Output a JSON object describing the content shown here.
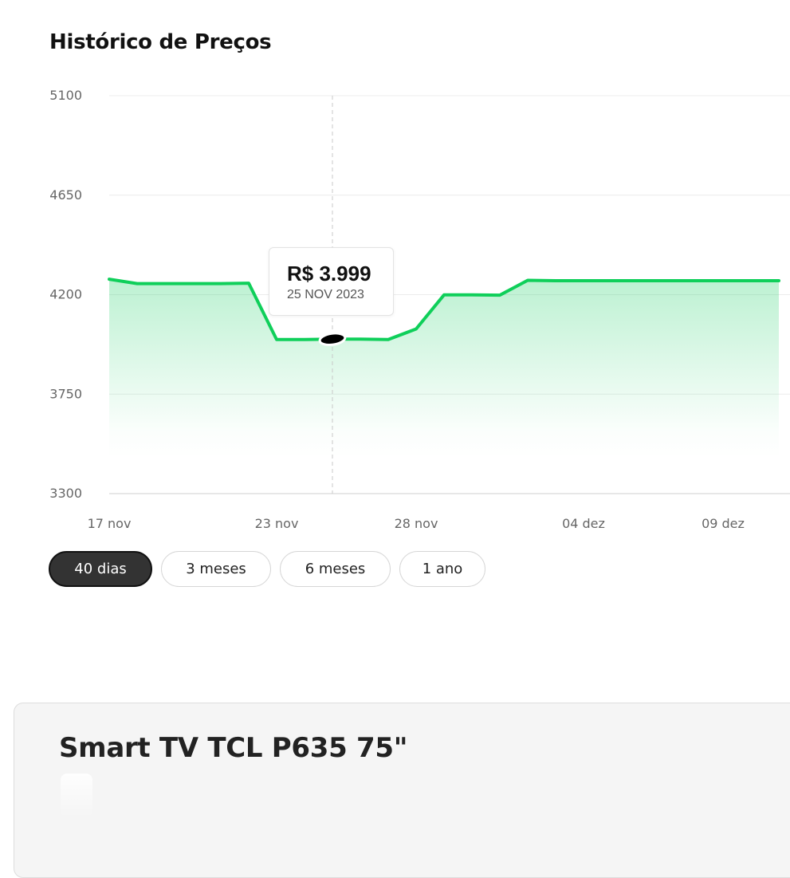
{
  "section": {
    "title": "Histórico de Preços"
  },
  "tooltip": {
    "price": "R$ 3.999",
    "date": "25 NOV 2023"
  },
  "range_buttons": [
    {
      "label": "40 dias",
      "active": true
    },
    {
      "label": "3 meses",
      "active": false
    },
    {
      "label": "6 meses",
      "active": false
    },
    {
      "label": "1 ano",
      "active": false
    }
  ],
  "product": {
    "title": "Smart TV TCL P635 75\""
  },
  "colors": {
    "line": "#0fcf5a",
    "fill": "#20d068",
    "active_button": "#333333"
  },
  "chart_data": {
    "type": "area",
    "title": "Histórico de Preços",
    "xlabel": "",
    "ylabel": "",
    "ylim": [
      3300,
      5100
    ],
    "yticks": [
      5100,
      4650,
      4200,
      3750,
      3300
    ],
    "x_ticks": [
      {
        "day": 0,
        "label": "17 nov"
      },
      {
        "day": 6,
        "label": "23 nov"
      },
      {
        "day": 11,
        "label": "28 nov"
      },
      {
        "day": 17,
        "label": "04 dez"
      },
      {
        "day": 22,
        "label": "09 dez"
      }
    ],
    "x_unit": "days",
    "xlim": [
      0,
      24.4
    ],
    "grid": true,
    "highlight": {
      "day": 8,
      "value": 3999
    },
    "series": [
      {
        "name": "",
        "points": [
          {
            "day": 0,
            "value": 4270
          },
          {
            "day": 1,
            "value": 4250
          },
          {
            "day": 2,
            "value": 4250
          },
          {
            "day": 3,
            "value": 4250
          },
          {
            "day": 4,
            "value": 4250
          },
          {
            "day": 5,
            "value": 4252
          },
          {
            "day": 6,
            "value": 3997
          },
          {
            "day": 7,
            "value": 3997
          },
          {
            "day": 8,
            "value": 3999
          },
          {
            "day": 9,
            "value": 3999
          },
          {
            "day": 10,
            "value": 3997
          },
          {
            "day": 11,
            "value": 4045
          },
          {
            "day": 12,
            "value": 4199
          },
          {
            "day": 13,
            "value": 4199
          },
          {
            "day": 14,
            "value": 4198
          },
          {
            "day": 15,
            "value": 4265
          },
          {
            "day": 16,
            "value": 4263
          },
          {
            "day": 17,
            "value": 4263
          },
          {
            "day": 18,
            "value": 4263
          },
          {
            "day": 19,
            "value": 4263
          },
          {
            "day": 20,
            "value": 4263
          },
          {
            "day": 21,
            "value": 4263
          },
          {
            "day": 22,
            "value": 4263
          },
          {
            "day": 23,
            "value": 4263
          },
          {
            "day": 24,
            "value": 4263
          }
        ]
      }
    ]
  }
}
